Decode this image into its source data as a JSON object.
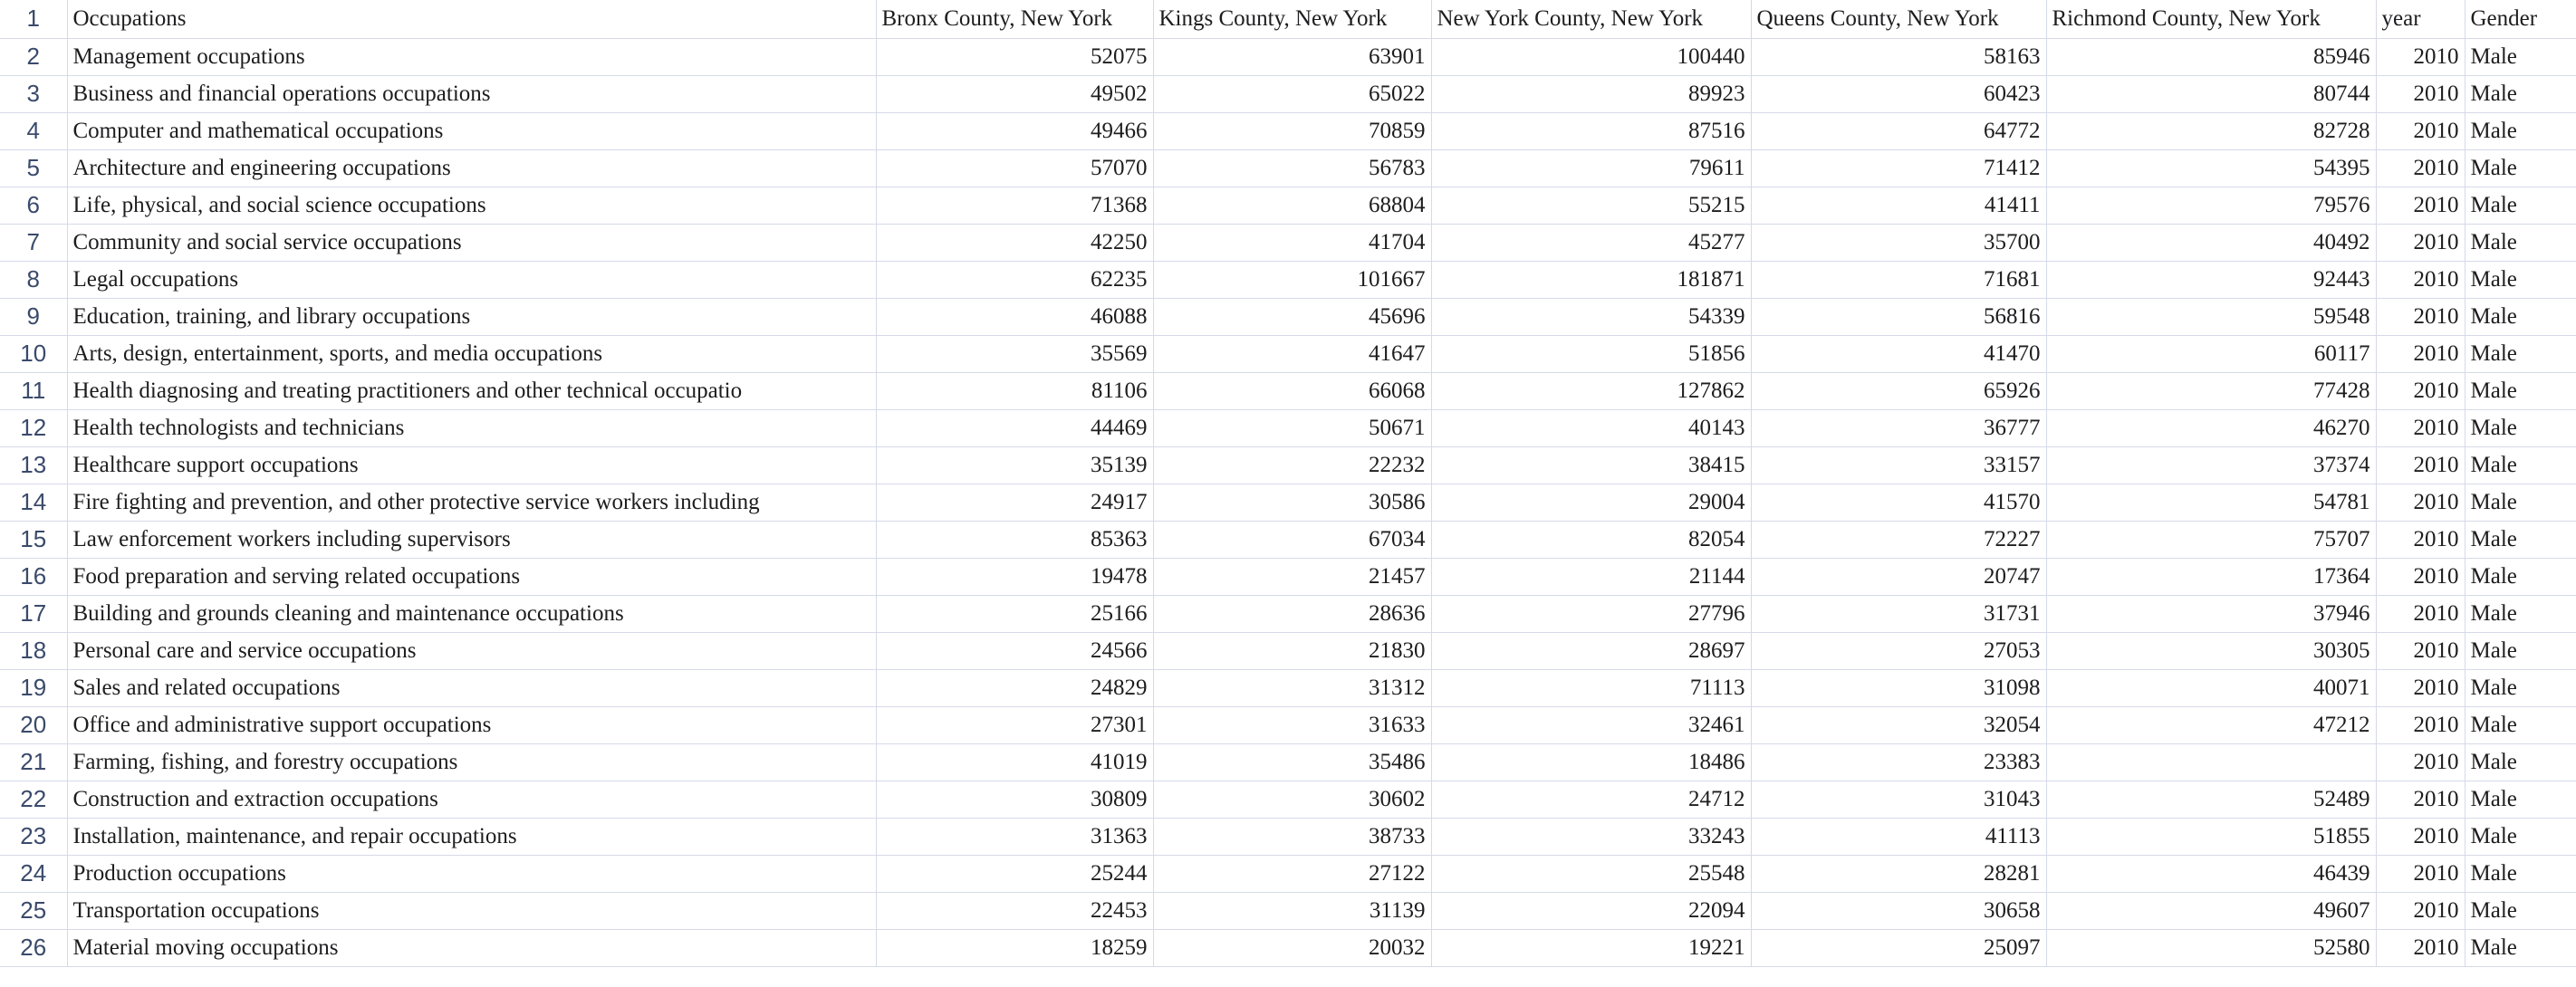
{
  "header": [
    "Occupations",
    "Bronx County, New York",
    "Kings County, New York",
    "New York County, New York",
    "Queens County, New York",
    "Richmond County, New York",
    "year",
    "Gender"
  ],
  "rows": [
    [
      "Management occupations",
      "52075",
      "63901",
      "100440",
      "58163",
      "85946",
      "2010",
      "Male"
    ],
    [
      "Business and financial operations occupations",
      "49502",
      "65022",
      "89923",
      "60423",
      "80744",
      "2010",
      "Male"
    ],
    [
      "Computer and mathematical occupations",
      "49466",
      "70859",
      "87516",
      "64772",
      "82728",
      "2010",
      "Male"
    ],
    [
      "Architecture and engineering occupations",
      "57070",
      "56783",
      "79611",
      "71412",
      "54395",
      "2010",
      "Male"
    ],
    [
      "Life, physical, and social science occupations",
      "71368",
      "68804",
      "55215",
      "41411",
      "79576",
      "2010",
      "Male"
    ],
    [
      "Community and social service occupations",
      "42250",
      "41704",
      "45277",
      "35700",
      "40492",
      "2010",
      "Male"
    ],
    [
      "Legal occupations",
      "62235",
      "101667",
      "181871",
      "71681",
      "92443",
      "2010",
      "Male"
    ],
    [
      "Education, training, and library occupations",
      "46088",
      "45696",
      "54339",
      "56816",
      "59548",
      "2010",
      "Male"
    ],
    [
      "Arts, design, entertainment, sports, and media occupations",
      "35569",
      "41647",
      "51856",
      "41470",
      "60117",
      "2010",
      "Male"
    ],
    [
      "Health diagnosing and treating practitioners and other technical occupatio",
      "81106",
      "66068",
      "127862",
      "65926",
      "77428",
      "2010",
      "Male"
    ],
    [
      "Health technologists and technicians",
      "44469",
      "50671",
      "40143",
      "36777",
      "46270",
      "2010",
      "Male"
    ],
    [
      "Healthcare support occupations",
      "35139",
      "22232",
      "38415",
      "33157",
      "37374",
      "2010",
      "Male"
    ],
    [
      "Fire fighting and prevention, and other protective service workers including",
      "24917",
      "30586",
      "29004",
      "41570",
      "54781",
      "2010",
      "Male"
    ],
    [
      "Law enforcement workers including supervisors",
      "85363",
      "67034",
      "82054",
      "72227",
      "75707",
      "2010",
      "Male"
    ],
    [
      "Food preparation and serving related occupations",
      "19478",
      "21457",
      "21144",
      "20747",
      "17364",
      "2010",
      "Male"
    ],
    [
      "Building and grounds cleaning and maintenance occupations",
      "25166",
      "28636",
      "27796",
      "31731",
      "37946",
      "2010",
      "Male"
    ],
    [
      "Personal care and service occupations",
      "24566",
      "21830",
      "28697",
      "27053",
      "30305",
      "2010",
      "Male"
    ],
    [
      "Sales and related occupations",
      "24829",
      "31312",
      "71113",
      "31098",
      "40071",
      "2010",
      "Male"
    ],
    [
      "Office and administrative support occupations",
      "27301",
      "31633",
      "32461",
      "32054",
      "47212",
      "2010",
      "Male"
    ],
    [
      "Farming, fishing, and forestry occupations",
      "41019",
      "35486",
      "18486",
      "23383",
      "",
      "2010",
      "Male"
    ],
    [
      "Construction and extraction occupations",
      "30809",
      "30602",
      "24712",
      "31043",
      "52489",
      "2010",
      "Male"
    ],
    [
      "Installation, maintenance, and repair occupations",
      "31363",
      "38733",
      "33243",
      "41113",
      "51855",
      "2010",
      "Male"
    ],
    [
      "Production occupations",
      "25244",
      "27122",
      "25548",
      "28281",
      "46439",
      "2010",
      "Male"
    ],
    [
      "Transportation occupations",
      "22453",
      "31139",
      "22094",
      "30658",
      "49607",
      "2010",
      "Male"
    ],
    [
      "Material moving occupations",
      "18259",
      "20032",
      "19221",
      "25097",
      "52580",
      "2010",
      "Male"
    ]
  ]
}
